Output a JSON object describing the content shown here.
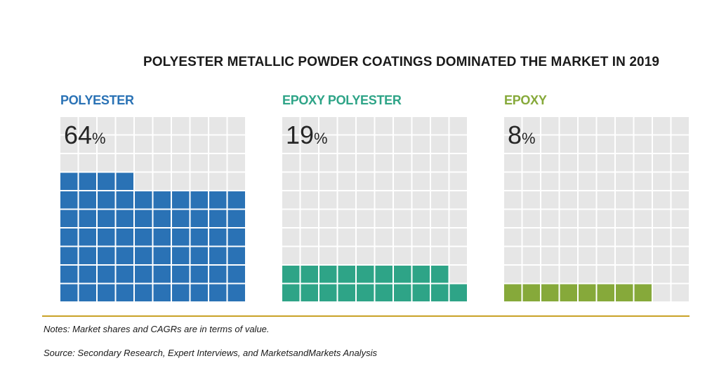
{
  "title": "POLYESTER METALLIC POWDER COATINGS DOMINATED THE MARKET IN 2019",
  "chart_data": {
    "type": "waffle",
    "grid": {
      "columns": 10,
      "rows": 10
    },
    "panels": [
      {
        "label": "POLYESTER",
        "value_text": "64",
        "unit": "%",
        "value": 64,
        "color": "#2a72b5"
      },
      {
        "label": "EPOXY POLYESTER",
        "value_text": "19",
        "unit": "%",
        "value": 19,
        "color": "#2ea487"
      },
      {
        "label": "EPOXY",
        "value_text": "8",
        "unit": "%",
        "value": 8,
        "color": "#86a93a"
      }
    ],
    "empty_cell_color": "#e6e6e6"
  },
  "notes": "Notes: Market shares and CAGRs are in terms of value.",
  "source": "Source: Secondary Research, Expert Interviews, and MarketsandMarkets Analysis",
  "divider_color": "#c9a227"
}
